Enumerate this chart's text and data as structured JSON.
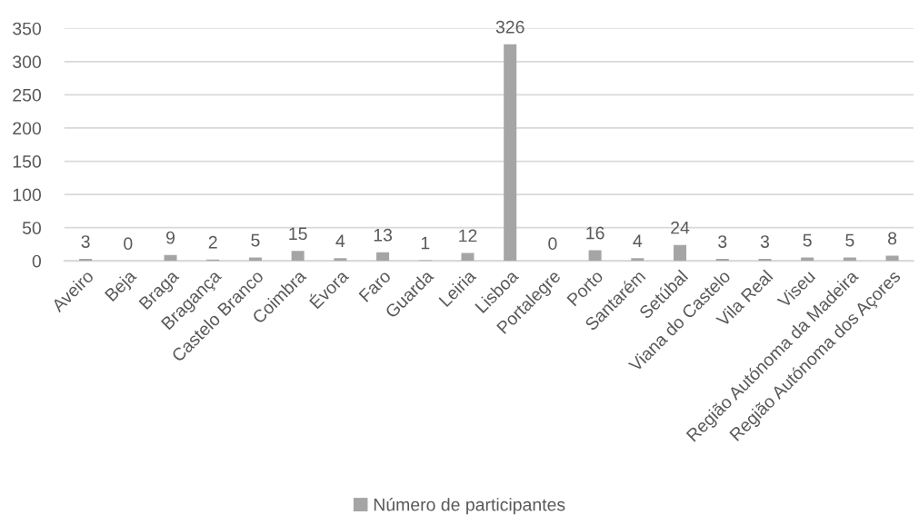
{
  "chart_data": {
    "type": "bar",
    "categories": [
      "Aveiro",
      "Beja",
      "Braga",
      "Bragança",
      "Castelo Branco",
      "Coimbra",
      "Évora",
      "Faro",
      "Guarda",
      "Leiria",
      "Lisboa",
      "Portalegre",
      "Porto",
      "Santarém",
      "Setúbal",
      "Viana do Castelo",
      "Vila Real",
      "Viseu",
      "Região Autónoma da Madeira",
      "Região Autónoma dos Açores"
    ],
    "series": [
      {
        "name": "Número de participantes",
        "color": "#a5a5a5",
        "values": [
          3,
          0,
          9,
          2,
          5,
          15,
          4,
          13,
          1,
          12,
          326,
          0,
          16,
          4,
          24,
          3,
          3,
          5,
          5,
          8
        ]
      }
    ],
    "ylim": [
      0,
      350
    ],
    "yticks": [
      0,
      50,
      100,
      150,
      200,
      250,
      300,
      350
    ],
    "grid": "y",
    "legend": "bottom",
    "data_labels": true
  }
}
